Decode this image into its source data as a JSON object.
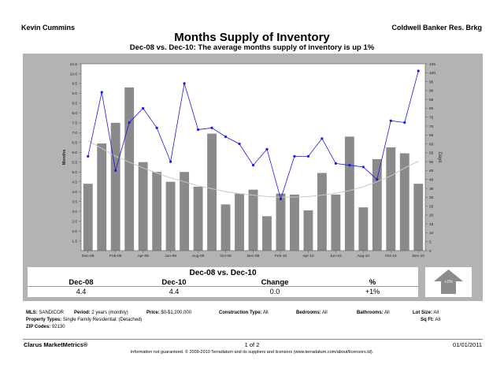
{
  "header": {
    "agent": "Kevin Cummins",
    "brokerage": "Coldwell Banker Res. Brkg",
    "title": "Months Supply of Inventory",
    "subtitle": "Dec-08 vs. Dec-10:  The average months supply of inventory is up 1%"
  },
  "chart_data": {
    "type": "bar",
    "categories": [
      "Dec-08",
      "Jan-09",
      "Feb-09",
      "Mar-09",
      "Apr-09",
      "May-09",
      "Jun-09",
      "Jul-09",
      "Aug-09",
      "Sep-09",
      "Oct-09",
      "Nov-09",
      "Dec-09",
      "Jan-10",
      "Feb-10",
      "Mar-10",
      "Apr-10",
      "May-10",
      "Jun-10",
      "Jul-10",
      "Aug-10",
      "Sep-10",
      "Oct-10",
      "Nov-10",
      "Dec-10"
    ],
    "x_tick_labels": [
      "Dec-08",
      "Feb-09",
      "Apr-09",
      "Jun-09",
      "Aug-09",
      "Oct-09",
      "Dec-09",
      "Feb-10",
      "Apr-10",
      "Jun-10",
      "Aug-10",
      "Oct-10",
      "Dec-10"
    ],
    "y_left": {
      "label": "Months",
      "min": 1.0,
      "max": 10.5,
      "ticks": [
        "1.5",
        "2.0",
        "2.5",
        "3.0",
        "3.5",
        "4.0",
        "4.5",
        "5.0",
        "5.5",
        "6.0",
        "6.5",
        "7.0",
        "7.5",
        "8.0",
        "8.5",
        "9.0",
        "9.5",
        "10.0",
        "10.5"
      ]
    },
    "y_right": {
      "label": "Days",
      "min": 0,
      "max": 105,
      "ticks": [
        "0",
        "5",
        "10",
        "15",
        "20",
        "25",
        "30",
        "35",
        "40",
        "45",
        "50",
        "55",
        "60",
        "65",
        "70",
        "75",
        "80",
        "85",
        "90",
        "95",
        "100",
        "105"
      ]
    },
    "series": [
      {
        "type": "bar",
        "axis": "left",
        "color": "#8a8a8a",
        "values": [
          4.4,
          6.45,
          7.5,
          9.3,
          5.5,
          5.0,
          4.5,
          5.0,
          4.25,
          6.95,
          3.35,
          3.9,
          4.1,
          2.75,
          3.9,
          3.85,
          3.05,
          4.95,
          3.85,
          6.8,
          3.2,
          5.65,
          6.25,
          5.95,
          4.4
        ]
      },
      {
        "type": "line",
        "axis": "right",
        "color": "#1a1ae6",
        "values": [
          53,
          89,
          45,
          72,
          80,
          69,
          50,
          94,
          68,
          69,
          64,
          60,
          48,
          57,
          29,
          53,
          53,
          63,
          49,
          48,
          47,
          40,
          73,
          72,
          101
        ]
      },
      {
        "type": "trend",
        "axis": "left",
        "color": "#c8c8c8",
        "values": [
          6.6,
          6.2,
          5.8,
          5.5,
          5.2,
          4.95,
          4.7,
          4.5,
          4.3,
          4.15,
          4.0,
          3.9,
          3.82,
          3.75,
          3.72,
          3.72,
          3.75,
          3.82,
          3.92,
          4.05,
          4.25,
          4.5,
          4.8,
          5.2,
          5.55
        ]
      }
    ]
  },
  "summary": {
    "title": "Dec-08 vs. Dec-10",
    "headers": [
      "Dec-08",
      "Dec-10",
      "Change",
      "%"
    ],
    "values": [
      "4.4",
      "4.4",
      "0.0",
      "+1%"
    ],
    "badge": "+1%"
  },
  "footer": {
    "mls_label": "MLS:",
    "mls": "SANDICOR",
    "period_label": "Period:",
    "period": "2 years (monthly)",
    "price_label": "Price:",
    "price": "$0-$1,200,000",
    "construction_label": "Construction Type:",
    "construction": "All",
    "bedrooms_label": "Bedrooms:",
    "bedrooms": "All",
    "bathrooms_label": "Bathrooms:",
    "bathrooms": "All",
    "lotsize_label": "Lot Size:",
    "lotsize": "All",
    "proptype_label": "Property Types:",
    "proptype": "Single Family Residential: (Detached)",
    "sqft_label": "Sq Ft:",
    "sqft": "All",
    "zip_label": "ZIP Codes:",
    "zip": "92130",
    "brand": "Clarus MarketMetrics®",
    "page": "1 of 2",
    "date": "01/01/2011",
    "disclaimer": "Information not guaranteed.  © 2009-2010 Terradatum and its suppliers and licensors (www.terradatum.com/about/licensors.td)."
  },
  "colors": {
    "panel": "#b3b3b3",
    "bar": "#8a8a8a",
    "line": "#1a1ae6",
    "trend": "#c8c8c8",
    "arrow": "#8c8c8c"
  }
}
